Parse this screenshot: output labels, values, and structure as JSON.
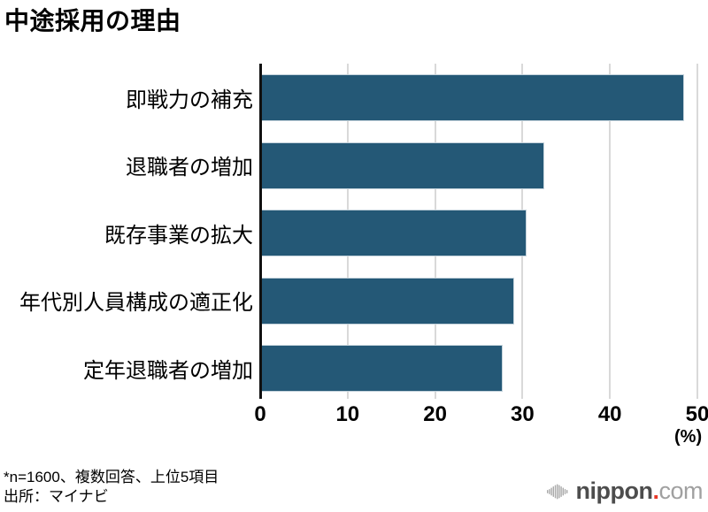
{
  "title": "中途採用の理由",
  "chart_data": {
    "type": "bar",
    "orientation": "horizontal",
    "title": "中途採用の理由",
    "categories": [
      "即戦力の補充",
      "退職者の増加",
      "既存事業の拡大",
      "年代別人員構成の適正化",
      "定年退職者の増加"
    ],
    "values": [
      48.4,
      32.4,
      30.4,
      28.9,
      27.6
    ],
    "xlabel": "(%)",
    "xlim": [
      0,
      50
    ],
    "xticks": [
      0,
      10,
      20,
      30,
      40,
      50
    ],
    "grid": true,
    "legend": false,
    "bar_color": "#245876",
    "bar_border_color": "#C3D2DB",
    "gridline_color": "#D9D9D9",
    "axis_color": "#111111"
  },
  "footnote": {
    "line1": "*n=1600、複数回答、上位5項目",
    "line2": "出所：マイナビ"
  },
  "logo": {
    "brand": "nippon",
    "dot": ".",
    "suffix": "com",
    "brand_color": "#4D4D4D",
    "dot_color": "#E83828",
    "suffix_color": "#A0A0A0",
    "icon_color": "#A8A8A8"
  }
}
